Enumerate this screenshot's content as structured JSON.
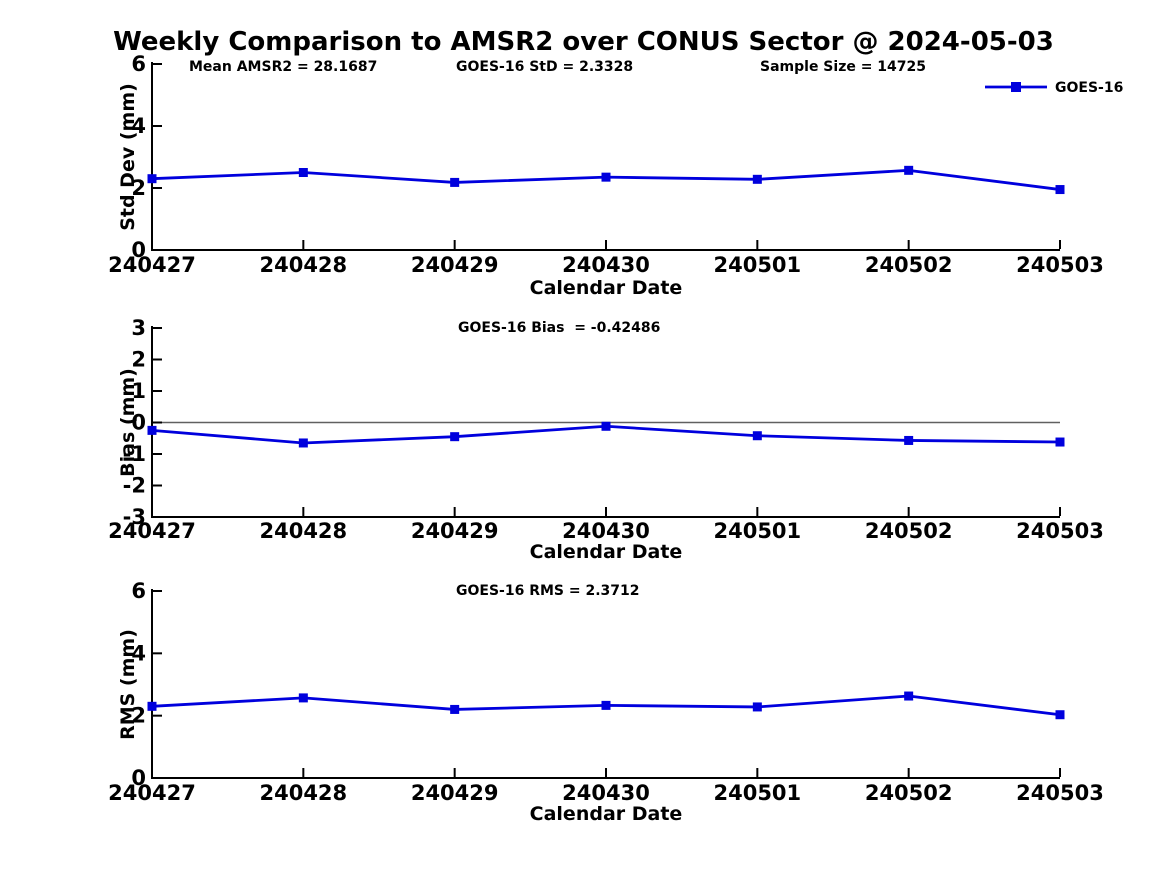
{
  "page": {
    "title": "Weekly Comparison to AMSR2 over CONUS Sector @ 2024-05-03"
  },
  "colors": {
    "line": "#0000dd",
    "marker": "#0000dd",
    "axis": "#000000",
    "zero_line": "#606060",
    "text": "#000000",
    "background": "#ffffff"
  },
  "legend": {
    "label": "GOES-16",
    "position": "top-right",
    "marker": "filled-square"
  },
  "chart_data": [
    {
      "type": "line",
      "name": "std-dev",
      "categories": [
        "240427",
        "240428",
        "240429",
        "240430",
        "240501",
        "240502",
        "240503"
      ],
      "series": [
        {
          "name": "GOES-16",
          "values": [
            2.3,
            2.5,
            2.18,
            2.35,
            2.28,
            2.57,
            1.95
          ]
        }
      ],
      "xlabel": "Calendar Date",
      "ylabel": "Std Dev (mm)",
      "ylim": [
        0,
        6
      ],
      "yticks": [
        0,
        2,
        4,
        6
      ],
      "grid": false,
      "annotations": [
        {
          "text": "Mean AMSR2 = 28.1687"
        },
        {
          "text": "GOES-16 StD = 2.3328"
        },
        {
          "text": "Sample Size = 14725"
        }
      ]
    },
    {
      "type": "line",
      "name": "bias",
      "categories": [
        "240427",
        "240428",
        "240429",
        "240430",
        "240501",
        "240502",
        "240503"
      ],
      "series": [
        {
          "name": "GOES-16",
          "values": [
            -0.25,
            -0.65,
            -0.45,
            -0.12,
            -0.42,
            -0.57,
            -0.62
          ]
        }
      ],
      "xlabel": "Calendar Date",
      "ylabel": "Bias (mm)",
      "ylim": [
        -3,
        3
      ],
      "yticks": [
        3,
        2,
        1,
        0,
        -1,
        -2,
        -3
      ],
      "grid": false,
      "zero_line": true,
      "annotations": [
        {
          "text": "GOES-16 Bias  = -0.42486"
        }
      ]
    },
    {
      "type": "line",
      "name": "rms",
      "categories": [
        "240427",
        "240428",
        "240429",
        "240430",
        "240501",
        "240502",
        "240503"
      ],
      "series": [
        {
          "name": "GOES-16",
          "values": [
            2.3,
            2.57,
            2.2,
            2.33,
            2.28,
            2.63,
            2.03
          ]
        }
      ],
      "xlabel": "Calendar Date",
      "ylabel": "RMS (mm)",
      "ylim": [
        0,
        6
      ],
      "yticks": [
        0,
        2,
        4,
        6
      ],
      "grid": false,
      "annotations": [
        {
          "text": "GOES-16 RMS = 2.3712"
        }
      ]
    }
  ]
}
